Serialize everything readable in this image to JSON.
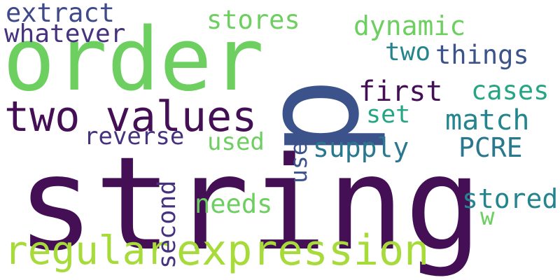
{
  "words": [
    {
      "text": "string",
      "color": "#440f55"
    },
    {
      "text": "p",
      "color": "#3b538a"
    },
    {
      "text": "order",
      "color": "#6ccf60"
    },
    {
      "text": "two values",
      "color": "#440f55"
    },
    {
      "text": "expression",
      "color": "#a6db39"
    },
    {
      "text": "regular",
      "color": "#a6db39"
    },
    {
      "text": "extract",
      "color": "#3e4a89"
    },
    {
      "text": "whatever",
      "color": "#46327e"
    },
    {
      "text": "stores",
      "color": "#6ccf60"
    },
    {
      "text": "dynamic",
      "color": "#6ccf60"
    },
    {
      "text": "two",
      "color": "#25858e"
    },
    {
      "text": "things",
      "color": "#3b538a"
    },
    {
      "text": "first",
      "color": "#440f55"
    },
    {
      "text": "cases",
      "color": "#25a584"
    },
    {
      "text": "set",
      "color": "#25a584"
    },
    {
      "text": "match",
      "color": "#25858e"
    },
    {
      "text": "reverse",
      "color": "#46327e"
    },
    {
      "text": "used",
      "color": "#6ccf60"
    },
    {
      "text": "supply",
      "color": "#2a788e"
    },
    {
      "text": "PCRE",
      "color": "#2a788e"
    },
    {
      "text": "user",
      "color": "#3b538a"
    },
    {
      "text": "second",
      "color": "#46327e"
    },
    {
      "text": "needs",
      "color": "#6ccf60"
    },
    {
      "text": "stored",
      "color": "#25858e"
    },
    {
      "text": "w",
      "color": "#6ccf60"
    }
  ]
}
